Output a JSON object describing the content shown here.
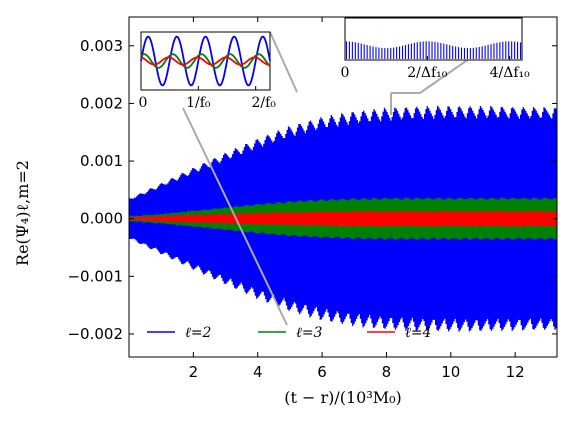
{
  "chart_data": {
    "type": "line",
    "xlabel": "(t − r)/(10³M₀)",
    "ylabel": "Re(Ψ₄)ℓ,m=2",
    "xlim": [
      0,
      13.3
    ],
    "ylim": [
      -0.0024,
      0.0035
    ],
    "x_ticks": [
      2,
      4,
      6,
      8,
      10,
      12
    ],
    "x_tick_labels": [
      "2",
      "4",
      "6",
      "8",
      "10",
      "12"
    ],
    "y_ticks": [
      -0.002,
      -0.001,
      0.0,
      0.001,
      0.002,
      0.003
    ],
    "y_tick_labels": [
      "−0.002",
      "−0.001",
      "0.000",
      "0.001",
      "0.002",
      "0.003"
    ],
    "grid": false,
    "legend_position": "bottom",
    "series": [
      {
        "name": "ℓ=2",
        "color": "#0000ff",
        "envelope": {
          "x": [
            0,
            1,
            2,
            3,
            4,
            5,
            6,
            7,
            8,
            9,
            10,
            11,
            12,
            13.3
          ],
          "y": [
            0.00035,
            0.00062,
            0.00089,
            0.00115,
            0.0014,
            0.00162,
            0.00178,
            0.00188,
            0.00194,
            0.00197,
            0.00198,
            0.00198,
            0.00197,
            0.00196
          ]
        }
      },
      {
        "name": "ℓ=3",
        "color": "#008000",
        "envelope": {
          "x": [
            0,
            1,
            2,
            3,
            4,
            5,
            6,
            7,
            8,
            9,
            10,
            11,
            12,
            13.3
          ],
          "y": [
            3e-05,
            8e-05,
            0.00014,
            0.0002,
            0.00026,
            0.00031,
            0.00034,
            0.00036,
            0.00037,
            0.00037,
            0.00037,
            0.00037,
            0.00037,
            0.00037
          ]
        }
      },
      {
        "name": "ℓ=4",
        "color": "#ff0000",
        "envelope": {
          "x": [
            0,
            1,
            2,
            3,
            4,
            5,
            6,
            7,
            8,
            9,
            10,
            11,
            12,
            13.3
          ],
          "y": [
            1e-05,
            3e-05,
            6e-05,
            8e-05,
            0.0001,
            0.00011,
            0.00012,
            0.00013,
            0.00013,
            0.00013,
            0.00013,
            0.00013,
            0.00013,
            0.00013
          ]
        }
      }
    ],
    "insets": [
      {
        "type": "line",
        "tick_labels": [
          "0",
          "1/f₀",
          "2/f₀"
        ],
        "tick_values": [
          0,
          1,
          2
        ],
        "xlim": [
          0,
          2.25
        ],
        "series": [
          {
            "name": "ℓ=2",
            "color": "#0000ff",
            "amplitude": 1.0
          },
          {
            "name": "ℓ=3",
            "color": "#008000",
            "amplitude": 0.28
          },
          {
            "name": "ℓ=4",
            "color": "#ff0000",
            "amplitude": 0.15
          }
        ]
      },
      {
        "type": "bar",
        "tick_labels": [
          "0",
          "2/Δf₁₀",
          "4/Δf₁₀"
        ],
        "tick_values": [
          0,
          2,
          4
        ],
        "xlim": [
          0,
          4.3
        ],
        "series": [
          {
            "name": "ℓ=2",
            "color": "#0000ff",
            "amplitude": 1.0
          }
        ]
      }
    ]
  }
}
